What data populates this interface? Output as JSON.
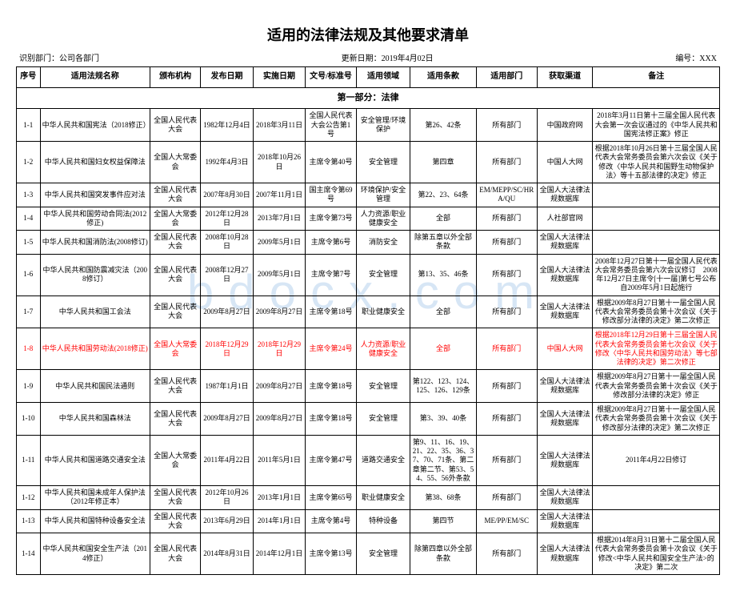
{
  "title": "适用的法律法规及其他要求清单",
  "meta": {
    "left": "识别部门：公司各部门",
    "center": "更新日期：2019年4月02日",
    "right": "编号：XXX"
  },
  "watermark": "bdocx.com",
  "columns": [
    "序号",
    "适用法规名称",
    "颁布机构",
    "发布日期",
    "实施日期",
    "文号/标准号",
    "适用领域",
    "适用条款",
    "适用部门",
    "获取渠道",
    "备注"
  ],
  "section_header": "第一部分：法律",
  "rows": [
    {
      "seq": "1-1",
      "name": "中华人民共和国宪法（2018修正）",
      "org": "全国人民代表大会",
      "pub": "1982年12月4日",
      "eff": "2018年3月11日",
      "doc": "全国人民代表大会公告第1号",
      "scope": "安全管理/环境保护",
      "art": "第26、42条",
      "dept": "所有部门",
      "src": "中国政府网",
      "note": "2018年3月11日第十三届全国人民代表大会第一次会议通过的《中华人民共和国宪法修正案》修正"
    },
    {
      "seq": "1-2",
      "name": "中华人民共和国妇女权益保障法",
      "org": "全国人大常委会",
      "pub": "1992年4月3日",
      "eff": "2018年10月26日",
      "doc": "主席令第40号",
      "scope": "安全管理",
      "art": "第四章",
      "dept": "所有部门",
      "src": "中国人大网",
      "note": "根据2018年10月26日第十三届全国人民代表大会常务委员会第六次会议《关于修改〈中华人民共和国野生动物保护法〉等十五部法律的决定》修正"
    },
    {
      "seq": "1-3",
      "name": "中华人民共和国突发事件应对法",
      "org": "全国人民代表大会",
      "pub": "2007年8月30日",
      "eff": "2007年11月1日",
      "doc": "国主席令第69号",
      "scope": "环境保护/安全管理",
      "art": "第22、23、64条",
      "dept": "EM/MEPP/SC/HRA/QU",
      "src": "全国人大法律法规数据库",
      "note": ""
    },
    {
      "seq": "1-4",
      "name": "中华人民共和国劳动合同法(2012修正)",
      "org": "全国人大常委会",
      "pub": "2012年12月28日",
      "eff": "2013年7月1日",
      "doc": "主席令第73号",
      "scope": "人力资源/职业健康安全",
      "art": "全部",
      "dept": "所有部门",
      "src": "人社部官网",
      "note": ""
    },
    {
      "seq": "1-5",
      "name": "中华人民共和国消防法(2008修订)",
      "org": "全国人民代表大会",
      "pub": "2008年10月28日",
      "eff": "2009年5月1日",
      "doc": "主席令第6号",
      "scope": "消防安全",
      "art": "除第五章以外全部条款",
      "dept": "所有部门",
      "src": "全国人大法律法规数据库",
      "note": ""
    },
    {
      "seq": "1-6",
      "name": "中华人民共和国防震减灾法（2008修订）",
      "org": "全国人民代表大会",
      "pub": "2008年12月27日",
      "eff": "2009年5月1日",
      "doc": "主席令第7号",
      "scope": "安全管理",
      "art": "第13、35、46条",
      "dept": "所有部门",
      "src": "全国人大法律法规数据库",
      "note": "2008年12月27日第十一届全国人民代表大会常务委员会第六次会议修订　2008年12月27日主席令[十一届]第七号公布　自2009年5月1日起施行"
    },
    {
      "seq": "1-7",
      "name": "中华人民共和国工会法",
      "org": "全国人民代表大会",
      "pub": "2009年8月27日",
      "eff": "2009年8月27日",
      "doc": "主席令第18号",
      "scope": "职业健康安全",
      "art": "全部",
      "dept": "所有部门",
      "src": "全国人大法律法规数据库",
      "note": "根据2009年8月27日第十一届全国人民代表大会常务委员会第十次会议《关于修改部分法律的决定》第二次修正"
    },
    {
      "seq": "1-8",
      "name": "中华人民共和国劳动法(2018修正)",
      "org": "全国人大常委会",
      "pub": "2018年12月29日",
      "eff": "2018年12月29日",
      "doc": "主席令第24号",
      "scope": "人力资源/职业健康安全",
      "art": "全部",
      "dept": "所有部门",
      "src": "中国人大网",
      "note": "根据2018年12月29日第十三届全国人民代表大会常务委员会第七次会议《关于修改〈中华人民共和国劳动法〉等七部法律的决定》第二次修正",
      "highlight": true
    },
    {
      "seq": "1-9",
      "name": "中华人民共和国民法通则",
      "org": "全国人民代表大会",
      "pub": "1987年1月1日",
      "eff": "2009年8月27日",
      "doc": "主席令第18号",
      "scope": "安全管理",
      "art": "第122、123、124、125、126、129条",
      "dept": "所有部门",
      "src": "全国人大法律法规数据库",
      "note": "根据2009年8月27日第十一届全国人民代表大会常务委员会第十次会议《关于修改部分法律的决定》修正"
    },
    {
      "seq": "1-10",
      "name": "中华人民共和国森林法",
      "org": "全国人民代表大会",
      "pub": "2009年8月27日",
      "eff": "2009年8月27日",
      "doc": "主席令第18号",
      "scope": "安全管理",
      "art": "第3、39、40条",
      "dept": "所有部门",
      "src": "全国人大法律法规数据库",
      "note": "根据2009年8月27日第十一届全国人民代表大会常务委员会第十次会议《关于修改部分法律的决定》第二次修正"
    },
    {
      "seq": "1-11",
      "name": "中华人民共和国道路交通安全法",
      "org": "全国人大常委会",
      "pub": "2011年4月22日",
      "eff": "2011年5月1日",
      "doc": "主席令第47号",
      "scope": "道路交通安全",
      "art": "第9、11、16、19、21、22、35、36、37、70、71条、第二章第二节、第53、54、55、56外条款",
      "dept": "所有部门",
      "src": "全国人大法律法规数据库",
      "note": "2011年4月22日修订"
    },
    {
      "seq": "1-12",
      "name": "中华人民共和国未成年人保护法（2012年修正本）",
      "org": "全国人民代表大会",
      "pub": "2012年10月26日",
      "eff": "2013年1月1日",
      "doc": "主席令第65号",
      "scope": "职业健康安全",
      "art": "第38、68条",
      "dept": "所有部门",
      "src": "全国人大法律法规数据库",
      "note": ""
    },
    {
      "seq": "1-13",
      "name": "中华人民共和国特种设备安全法",
      "org": "全国人民代表大会",
      "pub": "2013年6月29日",
      "eff": "2014年1月1日",
      "doc": "主席令第4号",
      "scope": "特种设备",
      "art": "第四节",
      "dept": "ME/PP/EM/SC",
      "src": "全国人大法律法规数据库",
      "note": ""
    },
    {
      "seq": "1-14",
      "name": "中华人民共和国安全生产法（2014修正）",
      "org": "全国人民代表大会",
      "pub": "2014年8月31日",
      "eff": "2014年12月1日",
      "doc": "主席令第13号",
      "scope": "安全管理",
      "art": "除第四章以外全部条款",
      "dept": "所有部门",
      "src": "全国人大法律法规数据库",
      "note": "根据2014年8月31日第十二届全国人民代表大会常务委员会第十次会议《关于修改<中华人民共和国安全生产法>的决定》第二次"
    }
  ]
}
